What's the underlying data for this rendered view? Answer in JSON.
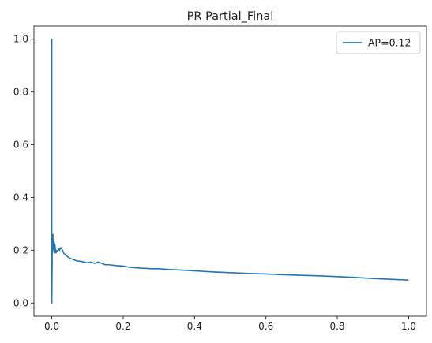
{
  "chart_data": {
    "type": "line",
    "title": "PR Partial_Final",
    "xlabel": "",
    "ylabel": "",
    "xlim": [
      -0.05,
      1.05
    ],
    "ylim": [
      -0.05,
      1.05
    ],
    "xticks": [
      0.0,
      0.2,
      0.4,
      0.6,
      0.8,
      1.0
    ],
    "xtick_labels": [
      "0.0",
      "0.2",
      "0.4",
      "0.6",
      "0.8",
      "1.0"
    ],
    "yticks": [
      0.0,
      0.2,
      0.4,
      0.6,
      0.8,
      1.0
    ],
    "ytick_labels": [
      "0.0",
      "0.2",
      "0.4",
      "0.6",
      "0.8",
      "1.0"
    ],
    "grid": false,
    "legend_position": "top-right",
    "series": [
      {
        "name": "AP=0.12",
        "color": "#1f77b4",
        "x": [
          0.0,
          0.0,
          0.0,
          0.001,
          0.001,
          0.002,
          0.003,
          0.004,
          0.005,
          0.006,
          0.007,
          0.008,
          0.009,
          0.01,
          0.012,
          0.014,
          0.016,
          0.018,
          0.02,
          0.022,
          0.025,
          0.028,
          0.03,
          0.033,
          0.036,
          0.04,
          0.045,
          0.05,
          0.06,
          0.07,
          0.08,
          0.09,
          0.1,
          0.11,
          0.12,
          0.13,
          0.14,
          0.15,
          0.16,
          0.18,
          0.2,
          0.22,
          0.25,
          0.28,
          0.3,
          0.33,
          0.36,
          0.4,
          0.45,
          0.5,
          0.55,
          0.6,
          0.65,
          0.7,
          0.75,
          0.8,
          0.85,
          0.9,
          0.95,
          1.0
        ],
        "y": [
          0.0,
          1.0,
          0.0,
          0.15,
          0.25,
          0.19,
          0.26,
          0.21,
          0.24,
          0.2,
          0.23,
          0.19,
          0.22,
          0.2,
          0.19,
          0.2,
          0.195,
          0.2,
          0.205,
          0.2,
          0.21,
          0.205,
          0.2,
          0.19,
          0.185,
          0.18,
          0.175,
          0.17,
          0.165,
          0.16,
          0.158,
          0.155,
          0.152,
          0.155,
          0.15,
          0.155,
          0.15,
          0.145,
          0.145,
          0.142,
          0.14,
          0.135,
          0.132,
          0.13,
          0.13,
          0.127,
          0.125,
          0.122,
          0.118,
          0.115,
          0.112,
          0.11,
          0.107,
          0.105,
          0.103,
          0.1,
          0.097,
          0.093,
          0.09,
          0.087
        ]
      }
    ]
  }
}
